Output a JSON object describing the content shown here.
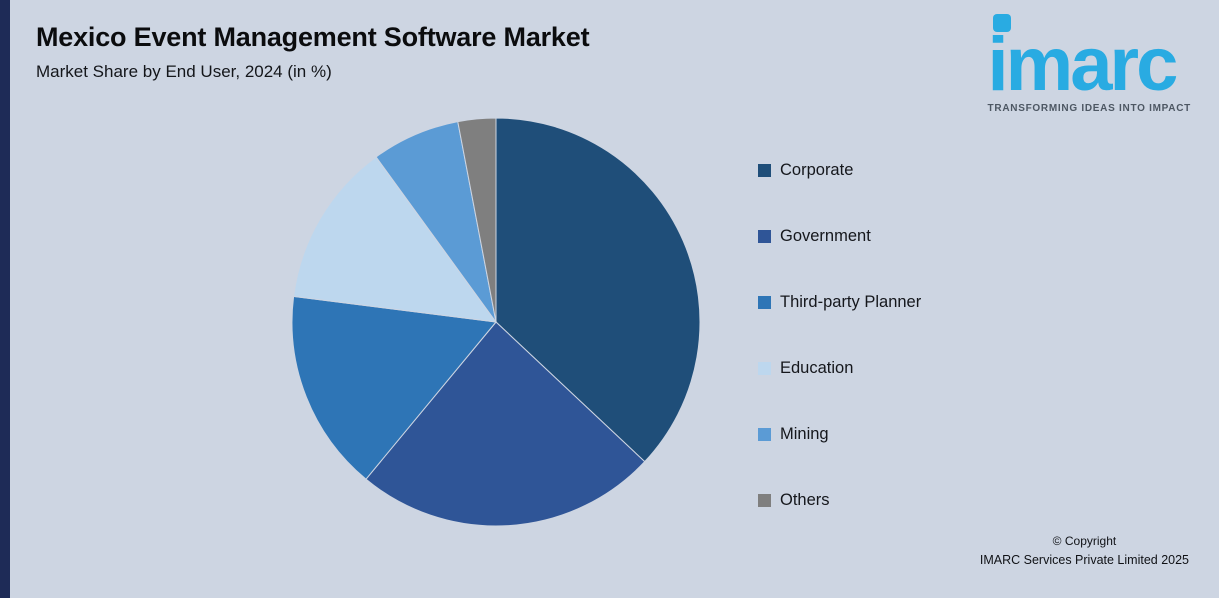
{
  "page": {
    "title": "Mexico Event Management Software Market",
    "subtitle": "Market Share by End User, 2024 (in %)",
    "background": "#cdd5e2",
    "accent_bar_color": "#1e2b57"
  },
  "logo": {
    "text": "imarc",
    "tagline": "TRANSFORMING IDEAS INTO IMPACT",
    "brand_color": "#29abe2",
    "dot_icon": "rounded-square-dot"
  },
  "chart_data": {
    "type": "pie",
    "title": "Mexico Event Management Software Market",
    "subtitle": "Market Share by End User, 2024 (in %)",
    "labels": [
      "Corporate",
      "Government",
      "Third-party Planner",
      "Education",
      "Mining",
      "Others"
    ],
    "values": [
      37,
      24,
      16,
      13,
      7,
      3
    ],
    "values_note": "estimated from slice angles, no data labels shown",
    "unit": "%",
    "colors": [
      "#1f4e79",
      "#2f5597",
      "#2e75b6",
      "#bdd7ee",
      "#5b9bd5",
      "#7f7f7f"
    ],
    "start_angle": "12 o'clock",
    "direction": "clockwise",
    "legend_position": "right",
    "data_labels_shown": false
  },
  "footer": {
    "copyright_line1": "© Copyright",
    "copyright_line2": "IMARC Services Private Limited 2025"
  }
}
